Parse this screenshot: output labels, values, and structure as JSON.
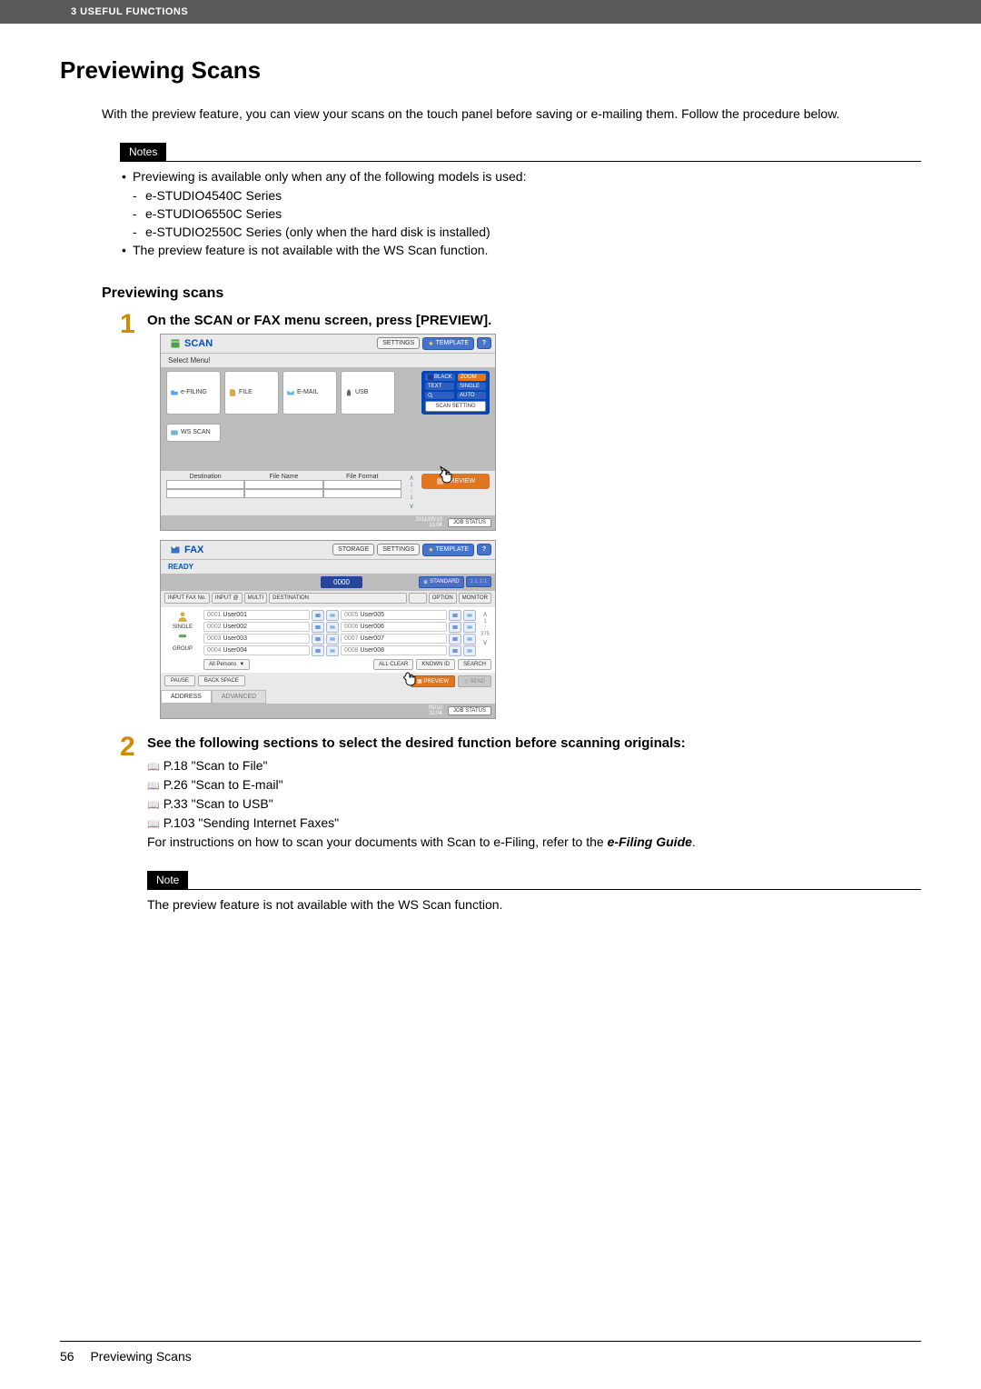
{
  "header": {
    "breadcrumb": "3 USEFUL FUNCTIONS"
  },
  "page": {
    "title": "Previewing Scans",
    "intro": "With the preview feature, you can view your scans on the touch panel before saving or e-mailing them. Follow the procedure below.",
    "notes_label": "Notes",
    "notes": {
      "line1": "Previewing is available only when any of the following models is used:",
      "models": [
        "e-STUDIO4540C Series",
        "e-STUDIO6550C Series",
        "e-STUDIO2550C Series (only when the hard disk is installed)"
      ],
      "line2": "The preview feature is not available with the WS Scan function."
    },
    "subheading": "Previewing scans",
    "step1": {
      "num": "1",
      "head": "On the SCAN or FAX menu screen, press [PREVIEW]."
    },
    "step2": {
      "num": "2",
      "head": "See the following sections to select the desired function before scanning originals:",
      "links": [
        "P.18 \"Scan to File\"",
        "P.26 \"Scan to E-mail\"",
        "P.33 \"Scan to USB\"",
        "P.103 \"Sending Internet Faxes\""
      ],
      "instr_a": "For instructions on how to scan your documents with Scan to e-Filing, refer to the ",
      "instr_b": "e-Filing Guide",
      "instr_c": "."
    },
    "note2_label": "Note",
    "note2_body": "The preview feature is not available with the WS Scan function."
  },
  "scanpanel": {
    "title": "SCAN",
    "subtitle": "Select Menu!",
    "topbtns": {
      "settings": "SETTINGS",
      "template": "TEMPLATE"
    },
    "buttons": {
      "efiling": "e-FILING",
      "file": "FILE",
      "email": "E-MAIL",
      "usb": "USB",
      "wsscan": "WS SCAN"
    },
    "side": {
      "black": "BLACK",
      "zoom": "ZOOM",
      "text": "TEXT",
      "single": "SINGLE",
      "mag": "",
      "auto": "AUTO",
      "setting": "SCAN SETTING"
    },
    "table": {
      "c1": "Destination",
      "c2": "File Name",
      "c3": "File Format"
    },
    "preview": "PREVIEW",
    "timestamp1": "2011/05/10",
    "timestamp2": "11:04",
    "jobstatus": "JOB STATUS"
  },
  "faxpanel": {
    "title": "FAX",
    "subtitle": "READY",
    "topbtns": {
      "storage": "STORAGE",
      "settings": "SETTINGS",
      "template": "TEMPLATE"
    },
    "counter": "0000",
    "standard": "STANDARD",
    "std2": "1:1 1:1",
    "inputfax": "INPUT FAX No.",
    "inputat": "INPUT @",
    "multi": "MULTI",
    "destination": "DESTINATION",
    "option": "OPTION",
    "monitor": "MONITOR",
    "groups": {
      "single": "SINGLE",
      "group": "GROUP"
    },
    "rows": [
      {
        "id": "0001",
        "name": "User001",
        "id2": "0005",
        "name2": "User005"
      },
      {
        "id": "0002",
        "name": "User002",
        "id2": "0006",
        "name2": "User006"
      },
      {
        "id": "0003",
        "name": "User003",
        "id2": "0007",
        "name2": "User007"
      },
      {
        "id": "0004",
        "name": "User004",
        "id2": "0008",
        "name2": "User008"
      }
    ],
    "scroll": {
      "cur": "1",
      "tot": "375"
    },
    "allpersons": "All Persons",
    "allclear": "ALL CLEAR",
    "knownid": "KNOWN ID",
    "search": "SEARCH",
    "pause": "PAUSE",
    "backspace": "BACK SPACE",
    "preview": "PREVIEW",
    "send": "SEND",
    "tab1": "ADDRESS",
    "tab2": "ADVANCED",
    "timestamp1": "05/10",
    "timestamp2": "11:04",
    "jobstatus": "JOB STATUS"
  },
  "footer": {
    "page": "56",
    "title": "Previewing Scans"
  }
}
